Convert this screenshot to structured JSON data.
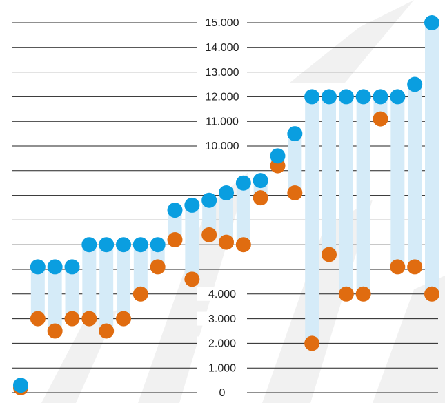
{
  "chart_data": {
    "type": "dumbbell",
    "categories": [
      null,
      null,
      null,
      null,
      null,
      null,
      null,
      null,
      null,
      null,
      null,
      null,
      null,
      null,
      null,
      null,
      null,
      null,
      null,
      null,
      null,
      null,
      null,
      null,
      null
    ],
    "series": [
      {
        "color": "#0a9ee0",
        "values": [
          300,
          5100,
          5100,
          5100,
          6000,
          6000,
          6000,
          6000,
          6000,
          7400,
          7600,
          7800,
          8100,
          8500,
          8600,
          9600,
          10500,
          12000,
          12000,
          12000,
          12000,
          12000,
          12000,
          12500,
          15000
        ]
      },
      {
        "color": "#e06c10",
        "values": [
          200,
          3000,
          2500,
          3000,
          3000,
          2500,
          3000,
          4000,
          5100,
          6200,
          4600,
          6400,
          6100,
          6000,
          7900,
          9200,
          8100,
          2000,
          5600,
          4000,
          4000,
          11100,
          5100,
          5100,
          4000
        ]
      }
    ],
    "range_color": "#d5ebf8",
    "ylim": [
      0,
      15000
    ],
    "yticks": [
      {
        "value": 0,
        "label": "0"
      },
      {
        "value": 1000,
        "label": "1.000"
      },
      {
        "value": 2000,
        "label": "2.000"
      },
      {
        "value": 3000,
        "label": "3.000"
      },
      {
        "value": 4000,
        "label": "4.000"
      },
      {
        "value": 5000,
        "label": null
      },
      {
        "value": 6000,
        "label": null
      },
      {
        "value": 7000,
        "label": null
      },
      {
        "value": 8000,
        "label": null
      },
      {
        "value": 9000,
        "label": null
      },
      {
        "value": 10000,
        "label": "10.000"
      },
      {
        "value": 11000,
        "label": "11.000"
      },
      {
        "value": 12000,
        "label": "12.000"
      },
      {
        "value": 13000,
        "label": "13.000"
      },
      {
        "value": 14000,
        "label": "14.000"
      },
      {
        "value": 15000,
        "label": "15.000"
      }
    ],
    "grid": true
  }
}
